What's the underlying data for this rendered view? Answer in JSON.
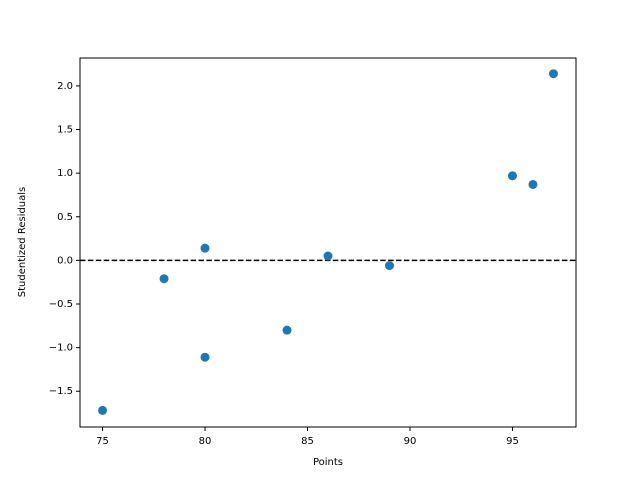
{
  "chart_data": {
    "type": "scatter",
    "x_label": "Points",
    "y_label": "Studentized Residuals",
    "x": [
      75,
      78,
      80,
      80,
      84,
      86,
      89,
      95,
      96,
      97
    ],
    "values": [
      -1.72,
      -0.21,
      0.14,
      -1.11,
      -0.8,
      0.05,
      -0.06,
      0.97,
      0.87,
      2.14
    ],
    "color": "#1f77b4",
    "xlim": [
      73.9,
      98.1
    ],
    "xticks": [
      75,
      80,
      85,
      90,
      95
    ],
    "ylim": [
      -1.91,
      2.32
    ],
    "yticks": [
      {
        "value": -1.5,
        "label": "−1.5"
      },
      {
        "value": -1.0,
        "label": "−1.0"
      },
      {
        "value": -0.5,
        "label": "−0.5"
      },
      {
        "value": 0.0,
        "label": "0.0"
      },
      {
        "value": 0.5,
        "label": "0.5"
      },
      {
        "value": 1.0,
        "label": "1.0"
      },
      {
        "value": 1.5,
        "label": "1.5"
      },
      {
        "value": 2.0,
        "label": "2.0"
      }
    ],
    "hline": 0,
    "hline_color": "#000000",
    "grid": false
  }
}
